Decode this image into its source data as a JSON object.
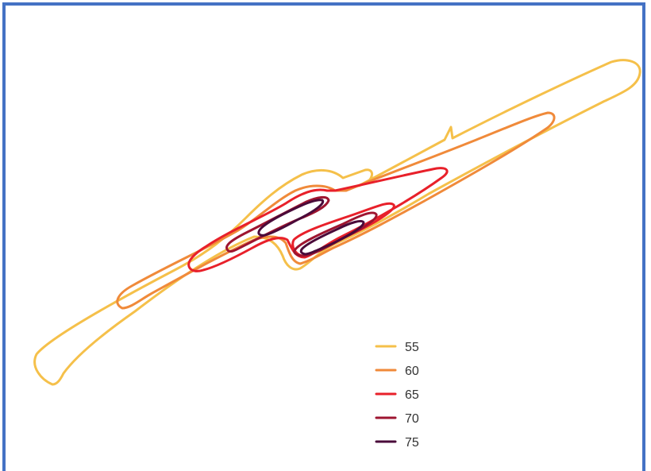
{
  "chart_data": {
    "type": "contour",
    "title": "",
    "xlabel": "",
    "ylabel": "",
    "legend_position": "bottom-center",
    "grid": false,
    "axes_visible": false,
    "levels": [
      {
        "label": "55",
        "color": "#f5c04a"
      },
      {
        "label": "60",
        "color": "#f08a3a"
      },
      {
        "label": "65",
        "color": "#e8202a"
      },
      {
        "label": "70",
        "color": "#9e1530"
      },
      {
        "label": "75",
        "color": "#4a0a3a"
      }
    ]
  },
  "frame": {
    "border_color": "#4472c4"
  }
}
